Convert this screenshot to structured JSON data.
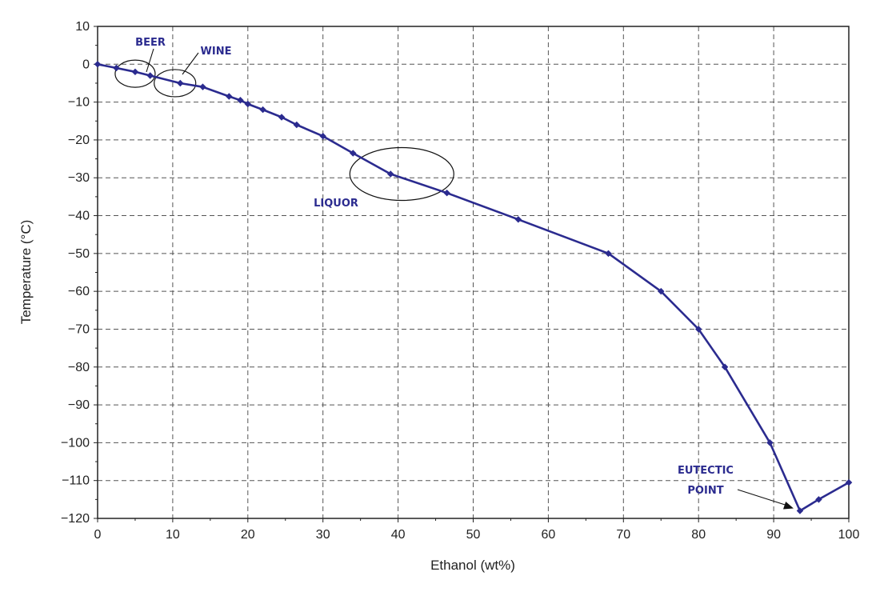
{
  "chart_data": {
    "type": "line",
    "title": "",
    "xlabel": "Ethanol (wt%)",
    "ylabel": "Temperature (°C)",
    "xlim": [
      0,
      100
    ],
    "ylim": [
      -120,
      10
    ],
    "x_ticks": [
      0,
      10,
      20,
      30,
      40,
      50,
      60,
      70,
      80,
      90,
      100
    ],
    "y_ticks": [
      10,
      0,
      -10,
      -20,
      -30,
      -40,
      -50,
      -60,
      -70,
      -80,
      -90,
      -100,
      -110,
      -120
    ],
    "grid": true,
    "legend": "none",
    "colors": {
      "line": "#2b2b8f",
      "annotation": "#2b2b8f",
      "grid": "#555555"
    },
    "series": [
      {
        "x": [
          0,
          2.5,
          5,
          7,
          11,
          14,
          17.5,
          19,
          20,
          22,
          24.5,
          26.5,
          30,
          34,
          39,
          46.5,
          56,
          68,
          75,
          80,
          83.5,
          89.5,
          93.5,
          96,
          100
        ],
        "y": [
          0,
          -1,
          -2,
          -3,
          -5,
          -6,
          -8.5,
          -9.5,
          -10.5,
          -12,
          -14,
          -16,
          -19,
          -23.5,
          -29,
          -34,
          -41,
          -50,
          -60,
          -70,
          -80,
          -100,
          -118,
          -115,
          -110.5
        ]
      }
    ],
    "annotations": [
      {
        "id": "beer",
        "text": "BEER"
      },
      {
        "id": "wine",
        "text": "WINE"
      },
      {
        "id": "liquor",
        "text": "LIQUOR"
      },
      {
        "id": "eutectic",
        "lines": [
          "EUTECTIC",
          "POINT"
        ]
      }
    ]
  }
}
